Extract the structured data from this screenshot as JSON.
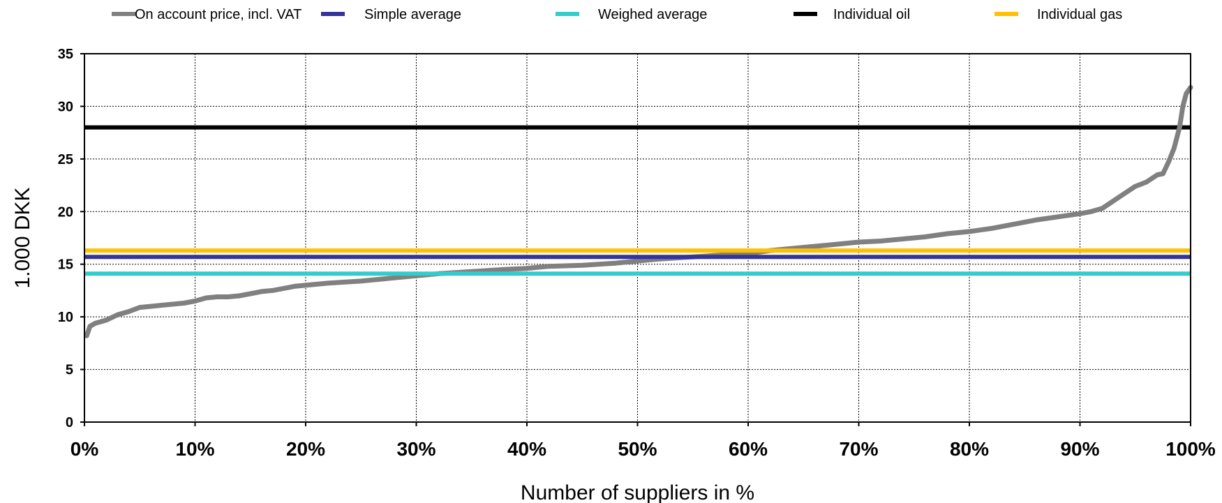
{
  "chart_data": {
    "type": "line",
    "title": "",
    "xlabel": "Number of suppliers in %",
    "ylabel": "1.000 DKK",
    "xlim": [
      0,
      100
    ],
    "ylim": [
      0,
      35
    ],
    "x_ticks": [
      "0%",
      "10%",
      "20%",
      "30%",
      "40%",
      "50%",
      "60%",
      "70%",
      "80%",
      "90%",
      "100%"
    ],
    "y_ticks": [
      "0",
      "5",
      "10",
      "15",
      "20",
      "25",
      "30",
      "35"
    ],
    "grid": true,
    "legend_position": "top",
    "series": [
      {
        "name": "On account price, incl. VAT",
        "color": "#808080",
        "x": [
          0.2,
          0.5,
          1,
          2,
          3,
          4,
          5,
          6,
          7,
          8,
          9,
          10,
          11,
          12,
          13,
          14,
          15,
          16,
          17,
          18,
          19,
          20,
          22,
          25,
          28,
          30,
          32,
          35,
          38,
          40,
          42,
          45,
          48,
          50,
          52,
          55,
          58,
          60,
          62,
          64,
          66,
          68,
          70,
          72,
          74,
          76,
          78,
          80,
          82,
          84,
          86,
          88,
          90,
          91,
          92,
          93,
          94,
          95,
          96,
          97,
          97.5,
          98,
          98.5,
          99,
          99.3,
          99.6,
          100
        ],
        "values": [
          8.2,
          9.1,
          9.4,
          9.7,
          10.2,
          10.5,
          10.9,
          11.0,
          11.1,
          11.2,
          11.3,
          11.5,
          11.8,
          11.9,
          11.9,
          12.0,
          12.2,
          12.4,
          12.5,
          12.7,
          12.9,
          13.0,
          13.2,
          13.4,
          13.7,
          13.9,
          14.1,
          14.3,
          14.5,
          14.6,
          14.8,
          14.9,
          15.1,
          15.3,
          15.5,
          15.7,
          15.9,
          16.0,
          16.3,
          16.5,
          16.7,
          16.9,
          17.1,
          17.2,
          17.4,
          17.6,
          17.9,
          18.1,
          18.4,
          18.8,
          19.2,
          19.5,
          19.8,
          20.0,
          20.3,
          21.0,
          21.7,
          22.4,
          22.8,
          23.5,
          23.6,
          24.7,
          26.0,
          28.0,
          30.0,
          31.2,
          31.8
        ]
      },
      {
        "name": "Simple average",
        "color": "#333399",
        "x": [
          0,
          100
        ],
        "values": [
          15.7,
          15.7
        ]
      },
      {
        "name": "Weighed average",
        "color": "#33CCCC",
        "x": [
          0,
          100
        ],
        "values": [
          14.1,
          14.1
        ]
      },
      {
        "name": "Individual oil",
        "color": "#000000",
        "x": [
          0,
          100
        ],
        "values": [
          28.0,
          28.0
        ]
      },
      {
        "name": "Individual gas",
        "color": "#FFC000",
        "x": [
          0,
          100
        ],
        "values": [
          16.3,
          16.3
        ]
      }
    ]
  }
}
